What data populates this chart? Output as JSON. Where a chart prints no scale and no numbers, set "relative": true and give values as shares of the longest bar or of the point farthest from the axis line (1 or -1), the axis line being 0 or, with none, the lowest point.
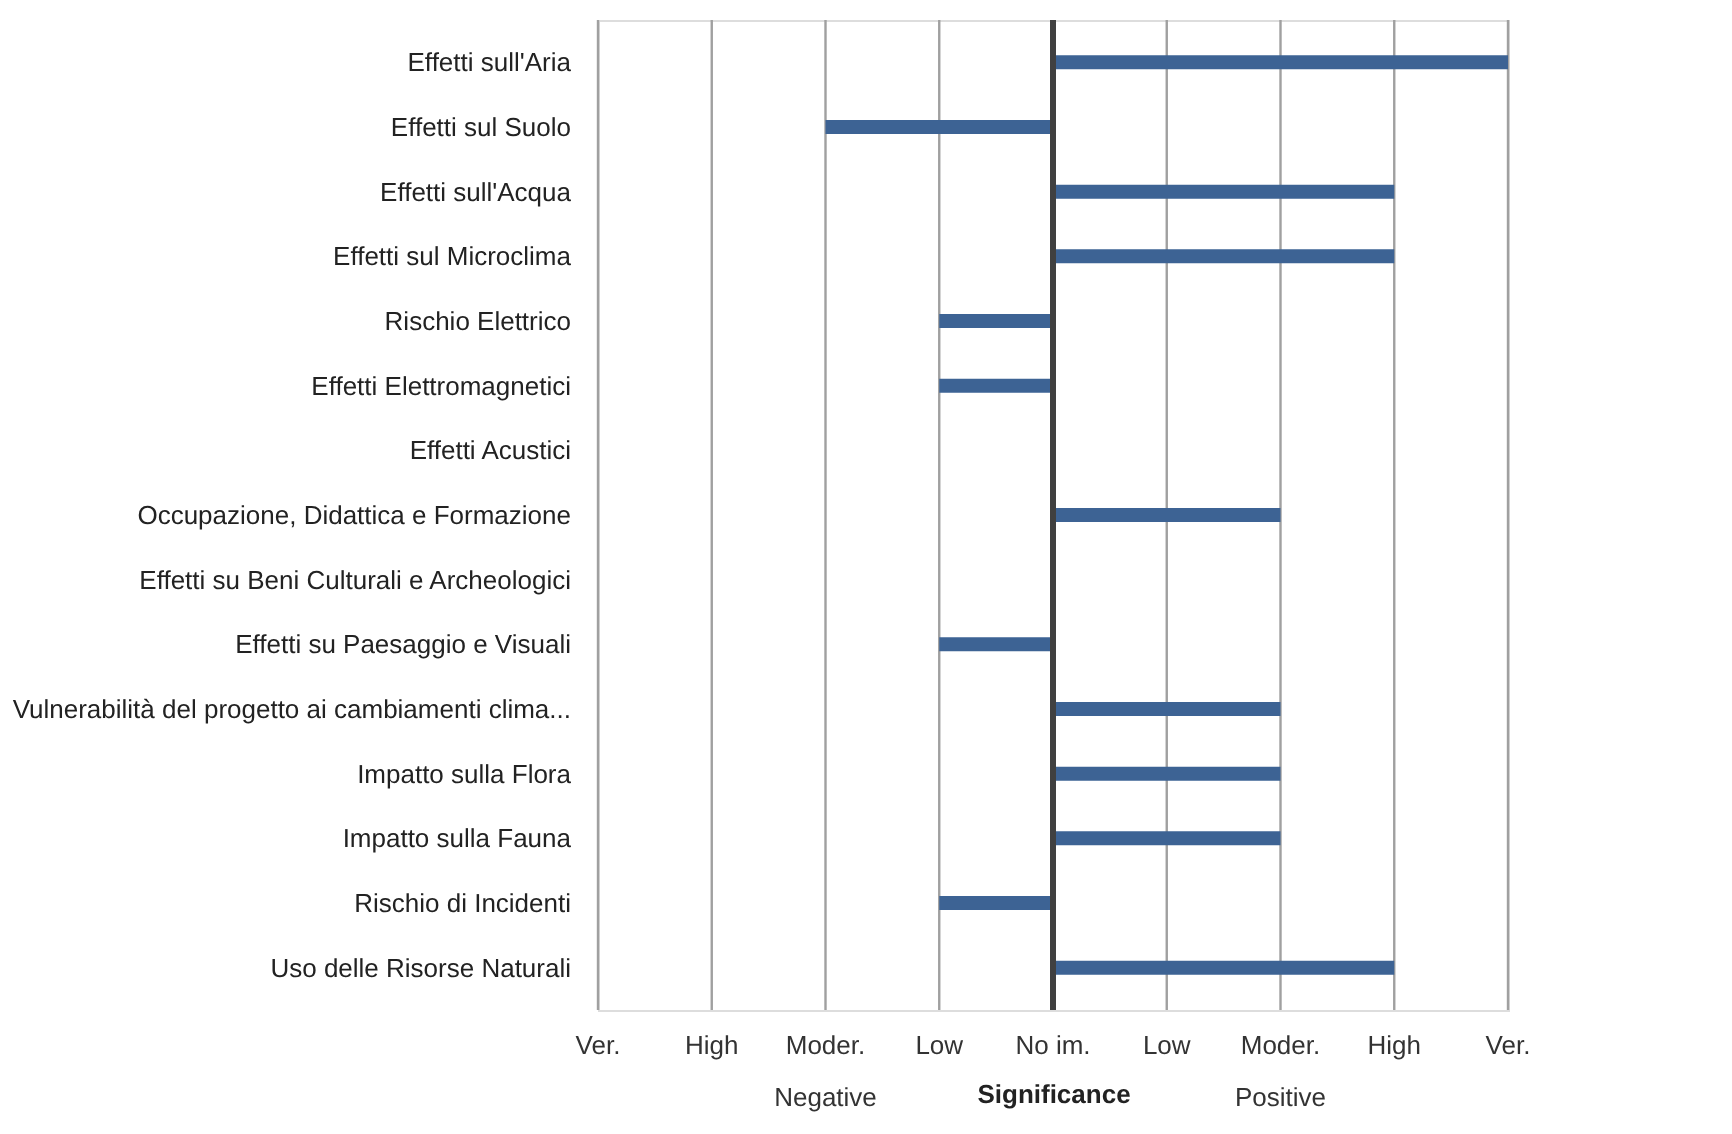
{
  "chart_data": {
    "type": "bar",
    "orientation": "horizontal",
    "relative": true,
    "xlabel": "Significance",
    "categories": [
      "Effetti sull'Aria",
      "Effetti sul Suolo",
      "Effetti sull'Acqua",
      "Effetti sul Microclima",
      "Rischio Elettrico",
      "Effetti Elettromagnetici",
      "Effetti Acustici",
      "Occupazione, Didattica e Formazione",
      "Effetti su Beni Culturali e Archeologici",
      "Effetti su Paesaggio e Visuali",
      "Vulnerabilità del progetto ai cambiamenti clima...",
      "Impatto sulla Flora",
      "Impatto sulla Fauna",
      "Rischio di Incidenti",
      "Uso delle Risorse Naturali"
    ],
    "values": [
      1,
      -0.5,
      0.75,
      0.75,
      -0.25,
      -0.25,
      0,
      0.5,
      0,
      -0.25,
      0.5,
      0.5,
      0.5,
      -0.25,
      0.75
    ],
    "color": "#3d6394",
    "grid": "x",
    "ref_lines": [
      {
        "axis": "x",
        "value": 0,
        "color": "#404040"
      }
    ],
    "annotations": [
      "Ver.",
      "High",
      "Moder.",
      "Low",
      "No im.",
      "Low",
      "Moder.",
      "High",
      "Ver.",
      "Negative",
      "Positive"
    ]
  }
}
